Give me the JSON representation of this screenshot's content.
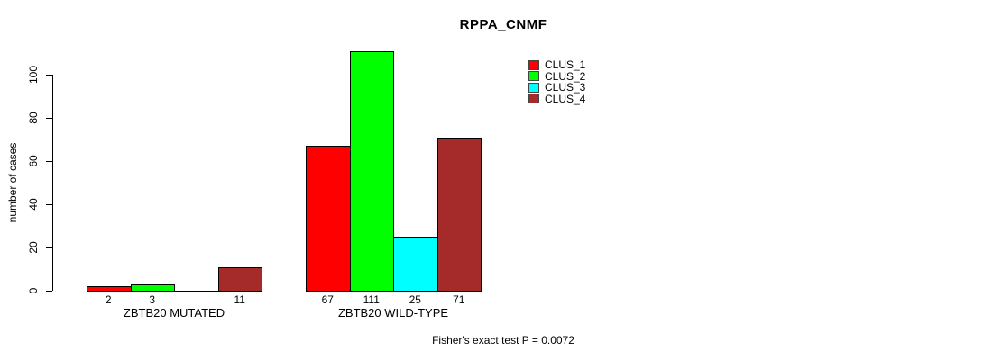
{
  "chart_data": {
    "type": "bar",
    "title": "RPPA_CNMF",
    "ylabel": "number of cases",
    "xlabel": "",
    "ylim": [
      0,
      100
    ],
    "yticks": [
      0,
      20,
      40,
      60,
      80,
      100
    ],
    "grid": false,
    "legend_position": "top-right",
    "categories": [
      "ZBTB20 MUTATED",
      "ZBTB20 WILD-TYPE"
    ],
    "series": [
      {
        "name": "CLUS_1",
        "color": "#FF0000",
        "values": [
          2,
          67
        ]
      },
      {
        "name": "CLUS_2",
        "color": "#00FF00",
        "values": [
          3,
          111
        ]
      },
      {
        "name": "CLUS_3",
        "color": "#00FFFF",
        "values": [
          0,
          25
        ]
      },
      {
        "name": "CLUS_4",
        "color": "#A52A2A",
        "values": [
          11,
          71
        ]
      }
    ],
    "bar_value_labels": [
      [
        "2",
        "3",
        "",
        "11"
      ],
      [
        "67",
        "111",
        "25",
        "71"
      ]
    ],
    "annotation": "Fisher's exact test P = 0.0072"
  }
}
